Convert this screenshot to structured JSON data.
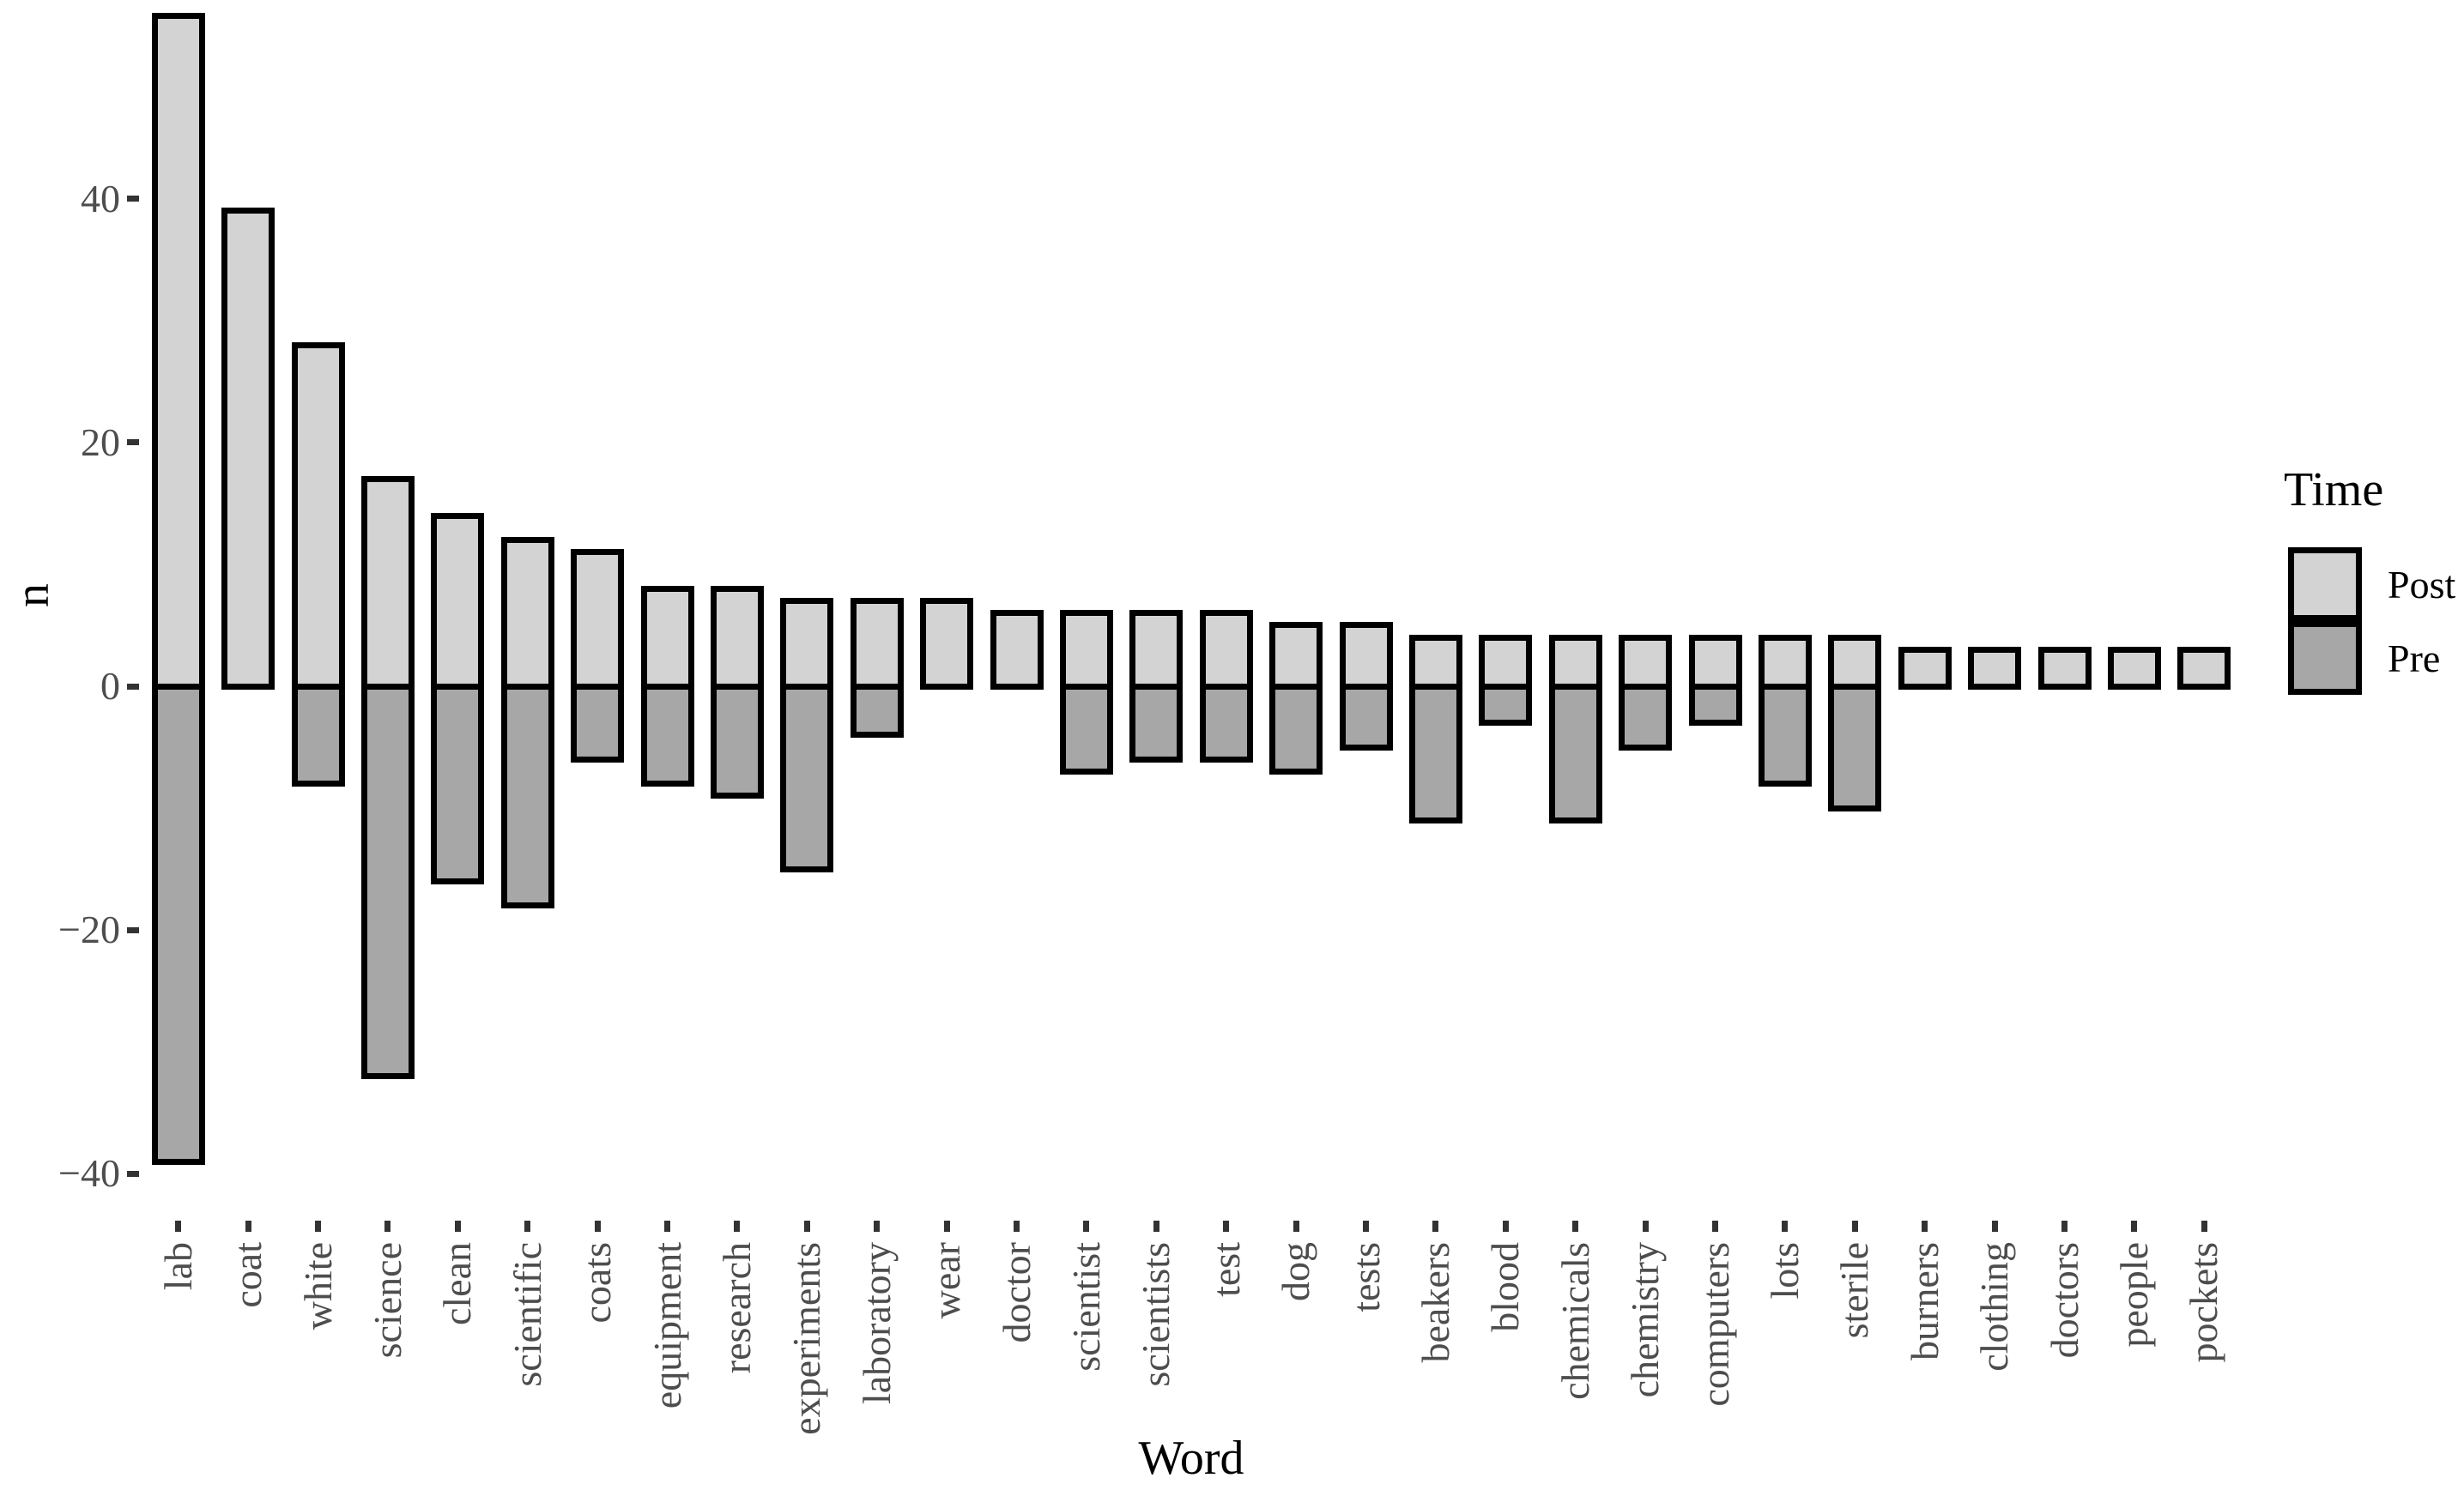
{
  "figure": {
    "y_axis_title": "n",
    "x_axis_title": "Word",
    "legend": {
      "title": "Time",
      "entries": [
        {
          "label": "Post",
          "color": "#d3d3d3"
        },
        {
          "label": "Pre",
          "color": "#a7a7a7"
        }
      ]
    }
  },
  "colors": {
    "post_fill": "#d3d3d3",
    "pre_fill": "#a7a7a7",
    "bar_border": "#000000",
    "tick_mark": "#333333",
    "tick_label": "#4d4d4d",
    "background": "#ffffff"
  },
  "chart_data": {
    "type": "bar",
    "subtype": "diverging-stacked-vertical",
    "title": "",
    "xlabel": "Word",
    "ylabel": "n",
    "grid": false,
    "legend_position": "right",
    "legend_title": "Time",
    "categories": [
      "lab",
      "coat",
      "white",
      "science",
      "clean",
      "scientific",
      "coats",
      "equipment",
      "research",
      "experiments",
      "laboratory",
      "wear",
      "doctor",
      "scientist",
      "scientists",
      "test",
      "dog",
      "tests",
      "beakers",
      "blood",
      "chemicals",
      "chemistry",
      "computers",
      "lots",
      "sterile",
      "burners",
      "clothing",
      "doctors",
      "people",
      "pockets"
    ],
    "series": [
      {
        "name": "Post",
        "values": [
          55,
          39,
          28,
          17,
          14,
          12,
          11,
          8,
          8,
          7,
          7,
          7,
          6,
          6,
          6,
          6,
          5,
          5,
          4,
          4,
          4,
          4,
          4,
          4,
          4,
          3,
          3,
          3,
          3,
          3
        ]
      },
      {
        "name": "Pre",
        "values": [
          -39,
          0,
          -8,
          -32,
          -16,
          -18,
          -6,
          -8,
          -9,
          -15,
          -4,
          0,
          0,
          -7,
          -6,
          -6,
          -7,
          -5,
          -11,
          -3,
          -11,
          -5,
          -3,
          -8,
          -10,
          0,
          0,
          0,
          0,
          0
        ]
      }
    ],
    "yticks": [
      -40,
      -20,
      0,
      20,
      40
    ],
    "ylim": [
      -43.7,
      56.3
    ]
  }
}
